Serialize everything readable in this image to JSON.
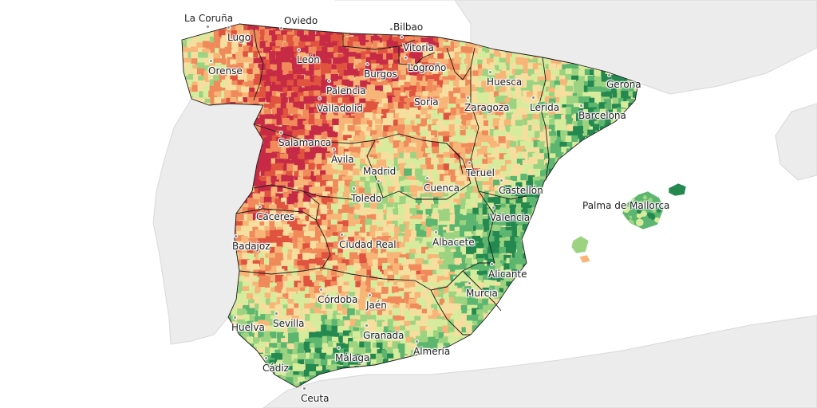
{
  "map": {
    "colors": {
      "sea": "#ffffff",
      "land_outside": "#ececec",
      "border": "#1a1a1a",
      "scale": [
        "#c62a45",
        "#e0533f",
        "#f08a5b",
        "#f7b678",
        "#f6df9e",
        "#d6ec9c",
        "#9cd381",
        "#5cb66f",
        "#23894f"
      ]
    },
    "cities": [
      {
        "id": "la-coruna",
        "label": "La Coruña"
      },
      {
        "id": "oviedo",
        "label": "Oviedo"
      },
      {
        "id": "bilbao",
        "label": "Bilbao"
      },
      {
        "id": "lugo",
        "label": "Lugo"
      },
      {
        "id": "vitoria",
        "label": "Vitoria"
      },
      {
        "id": "leon",
        "label": "León"
      },
      {
        "id": "logrono",
        "label": "Logroño"
      },
      {
        "id": "orense",
        "label": "Orense"
      },
      {
        "id": "burgos",
        "label": "Burgos"
      },
      {
        "id": "huesca",
        "label": "Huesca"
      },
      {
        "id": "gerona",
        "label": "Gerona"
      },
      {
        "id": "palencia",
        "label": "Palencia"
      },
      {
        "id": "soria",
        "label": "Soria"
      },
      {
        "id": "valladolid",
        "label": "Valladolid"
      },
      {
        "id": "zaragoza",
        "label": "Zaragoza"
      },
      {
        "id": "lerida",
        "label": "Lérida"
      },
      {
        "id": "barcelona",
        "label": "Barcelona"
      },
      {
        "id": "salamanca",
        "label": "Salamanca"
      },
      {
        "id": "avila",
        "label": "Ávila"
      },
      {
        "id": "madrid",
        "label": "Madrid"
      },
      {
        "id": "teruel",
        "label": "Teruel"
      },
      {
        "id": "cuenca",
        "label": "Cuenca"
      },
      {
        "id": "castellon",
        "label": "Castellón"
      },
      {
        "id": "toledo",
        "label": "Toledo"
      },
      {
        "id": "palma",
        "label": "Palma de Mallorca"
      },
      {
        "id": "caceres",
        "label": "Cáceres"
      },
      {
        "id": "valencia",
        "label": "Valencia"
      },
      {
        "id": "albacete",
        "label": "Albacete"
      },
      {
        "id": "badajoz",
        "label": "Badajoz"
      },
      {
        "id": "ciudad-real",
        "label": "Ciudad Real"
      },
      {
        "id": "alicante",
        "label": "Alicante"
      },
      {
        "id": "murcia",
        "label": "Murcia"
      },
      {
        "id": "cordoba",
        "label": "Córdoba"
      },
      {
        "id": "jaen",
        "label": "Jaén"
      },
      {
        "id": "huelva",
        "label": "Huelva"
      },
      {
        "id": "sevilla",
        "label": "Sevilla"
      },
      {
        "id": "granada",
        "label": "Granada"
      },
      {
        "id": "almeria",
        "label": "Almería"
      },
      {
        "id": "malaga",
        "label": "Málaga"
      },
      {
        "id": "cadiz",
        "label": "Cádiz"
      },
      {
        "id": "ceuta",
        "label": "Ceuta"
      }
    ]
  }
}
